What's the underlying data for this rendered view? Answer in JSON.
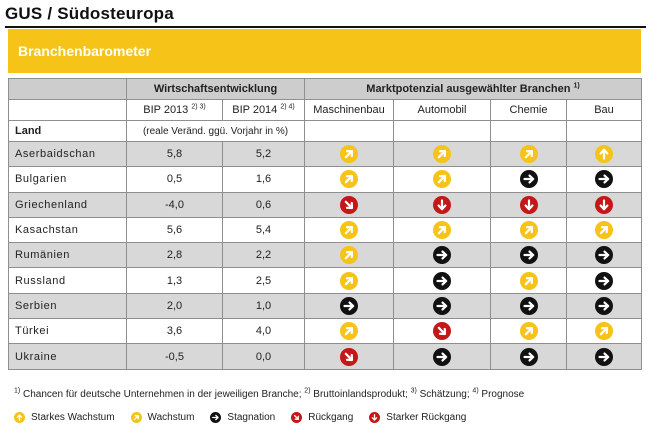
{
  "page_title": "GUS / Südosteuropa",
  "banner_title": "Branchenbarometer",
  "colors": {
    "accent_yellow": "#f6c319",
    "decline_red": "#c41717",
    "stagnation_black": "#111111",
    "header_gray": "#cdcdcd",
    "row_gray": "#d8d8d8"
  },
  "table": {
    "group_economy": "Wirtschaftsentwicklung",
    "group_market": "Marktpotenzial ausgewählter Branchen",
    "group_market_sup": "1)",
    "col_bip2013": "BIP 2013",
    "col_bip2013_sup": "2) 3)",
    "col_bip2014": "BIP 2014",
    "col_bip2014_sup": "2) 4)",
    "sectors": [
      "Maschinenbau",
      "Automobil",
      "Chemie",
      "Bau"
    ],
    "land_label": "Land",
    "unit_label": "(reale Veränd. ggü. Vorjahr in %)",
    "rows": [
      {
        "country": "Aserbaidschan",
        "bip2013": "5,8",
        "bip2014": "5,2",
        "outlook": [
          "growth",
          "growth",
          "growth",
          "strong-growth"
        ]
      },
      {
        "country": "Bulgarien",
        "bip2013": "0,5",
        "bip2014": "1,6",
        "outlook": [
          "growth",
          "growth",
          "stagnation",
          "stagnation"
        ]
      },
      {
        "country": "Griechenland",
        "bip2013": "-4,0",
        "bip2014": "0,6",
        "outlook": [
          "decline",
          "strong-decline",
          "strong-decline",
          "strong-decline"
        ]
      },
      {
        "country": "Kasachstan",
        "bip2013": "5,6",
        "bip2014": "5,4",
        "outlook": [
          "growth",
          "growth",
          "growth",
          "growth"
        ]
      },
      {
        "country": "Rumänien",
        "bip2013": "2,8",
        "bip2014": "2,2",
        "outlook": [
          "growth",
          "stagnation",
          "stagnation",
          "stagnation"
        ]
      },
      {
        "country": "Russland",
        "bip2013": "1,3",
        "bip2014": "2,5",
        "outlook": [
          "growth",
          "stagnation",
          "growth",
          "stagnation"
        ]
      },
      {
        "country": "Serbien",
        "bip2013": "2,0",
        "bip2014": "1,0",
        "outlook": [
          "stagnation",
          "stagnation",
          "stagnation",
          "stagnation"
        ]
      },
      {
        "country": "Türkei",
        "bip2013": "3,6",
        "bip2014": "4,0",
        "outlook": [
          "growth",
          "decline",
          "growth",
          "growth"
        ]
      },
      {
        "country": "Ukraine",
        "bip2013": "-0,5",
        "bip2014": "0,0",
        "outlook": [
          "decline",
          "stagnation",
          "stagnation",
          "stagnation"
        ]
      }
    ]
  },
  "footnote": {
    "n1": "1)",
    "t1": " Chancen für deutsche Unternehmen in der jeweiligen Branche; ",
    "n2": "2)",
    "t2": " Bruttoinlandsprodukt; ",
    "n3": "3)",
    "t3": " Schätzung; ",
    "n4": "4)",
    "t4": " Prognose"
  },
  "legend": [
    {
      "key": "strong-growth",
      "label": "Starkes Wachstum"
    },
    {
      "key": "growth",
      "label": "Wachstum"
    },
    {
      "key": "stagnation",
      "label": "Stagnation"
    },
    {
      "key": "decline",
      "label": "Rückgang"
    },
    {
      "key": "strong-decline",
      "label": "Starker Rückgang"
    }
  ]
}
